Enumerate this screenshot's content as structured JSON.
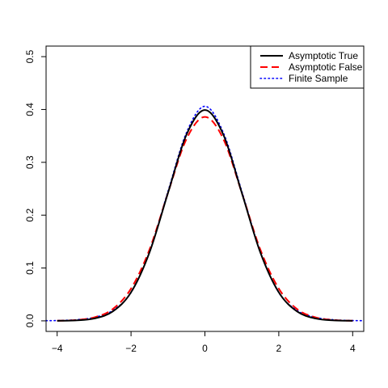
{
  "chart_data": {
    "type": "line",
    "title": "",
    "xlabel": "",
    "ylabel": "",
    "xlim": [
      -4.3,
      4.3
    ],
    "ylim": [
      -0.02,
      0.52
    ],
    "x_ticks": [
      "-4",
      "-2",
      "0",
      "2",
      "4"
    ],
    "x_tick_values": [
      -4,
      -2,
      0,
      2,
      4
    ],
    "y_ticks": [
      "0.0",
      "0.1",
      "0.2",
      "0.3",
      "0.4",
      "0.5"
    ],
    "y_tick_values": [
      0.0,
      0.1,
      0.2,
      0.3,
      0.4,
      0.5
    ],
    "grid": false,
    "legend_position": "top-right",
    "series": [
      {
        "name": "Asymptotic True",
        "color": "#000000",
        "line_style": "solid",
        "x": [
          -4.0,
          -3.5,
          -3.0,
          -2.5,
          -2.0,
          -1.5,
          -1.0,
          -0.5,
          0.0,
          0.5,
          1.0,
          1.5,
          2.0,
          2.5,
          3.0,
          3.5,
          4.0
        ],
        "y": [
          0.0001,
          0.0009,
          0.0044,
          0.0175,
          0.054,
          0.1295,
          0.242,
          0.3521,
          0.3989,
          0.3521,
          0.242,
          0.1295,
          0.054,
          0.0175,
          0.0044,
          0.0009,
          0.0001
        ]
      },
      {
        "name": "Asymptotic False",
        "color": "#ff0000",
        "line_style": "dashed",
        "x": [
          -4.0,
          -3.5,
          -3.0,
          -2.5,
          -2.0,
          -1.5,
          -1.0,
          -0.5,
          0.0,
          0.5,
          1.0,
          1.5,
          2.0,
          2.5,
          3.0,
          3.5,
          4.0
        ],
        "y": [
          0.0002,
          0.0015,
          0.0065,
          0.022,
          0.061,
          0.135,
          0.242,
          0.344,
          0.386,
          0.344,
          0.242,
          0.135,
          0.061,
          0.022,
          0.0065,
          0.0015,
          0.0002
        ]
      },
      {
        "name": "Finite Sample",
        "color": "#0000ff",
        "line_style": "dotted",
        "x": [
          -4.3,
          -4.0,
          -3.5,
          -3.0,
          -2.5,
          -2.0,
          -1.5,
          -1.0,
          -0.5,
          0.0,
          0.5,
          1.0,
          1.5,
          2.0,
          2.5,
          3.0,
          3.5,
          4.0,
          4.3
        ],
        "y": [
          0.0003,
          0.0006,
          0.002,
          0.0065,
          0.0195,
          0.0535,
          0.1305,
          0.245,
          0.356,
          0.406,
          0.356,
          0.245,
          0.1305,
          0.0535,
          0.0195,
          0.0065,
          0.002,
          0.0006,
          0.0003
        ]
      }
    ]
  }
}
